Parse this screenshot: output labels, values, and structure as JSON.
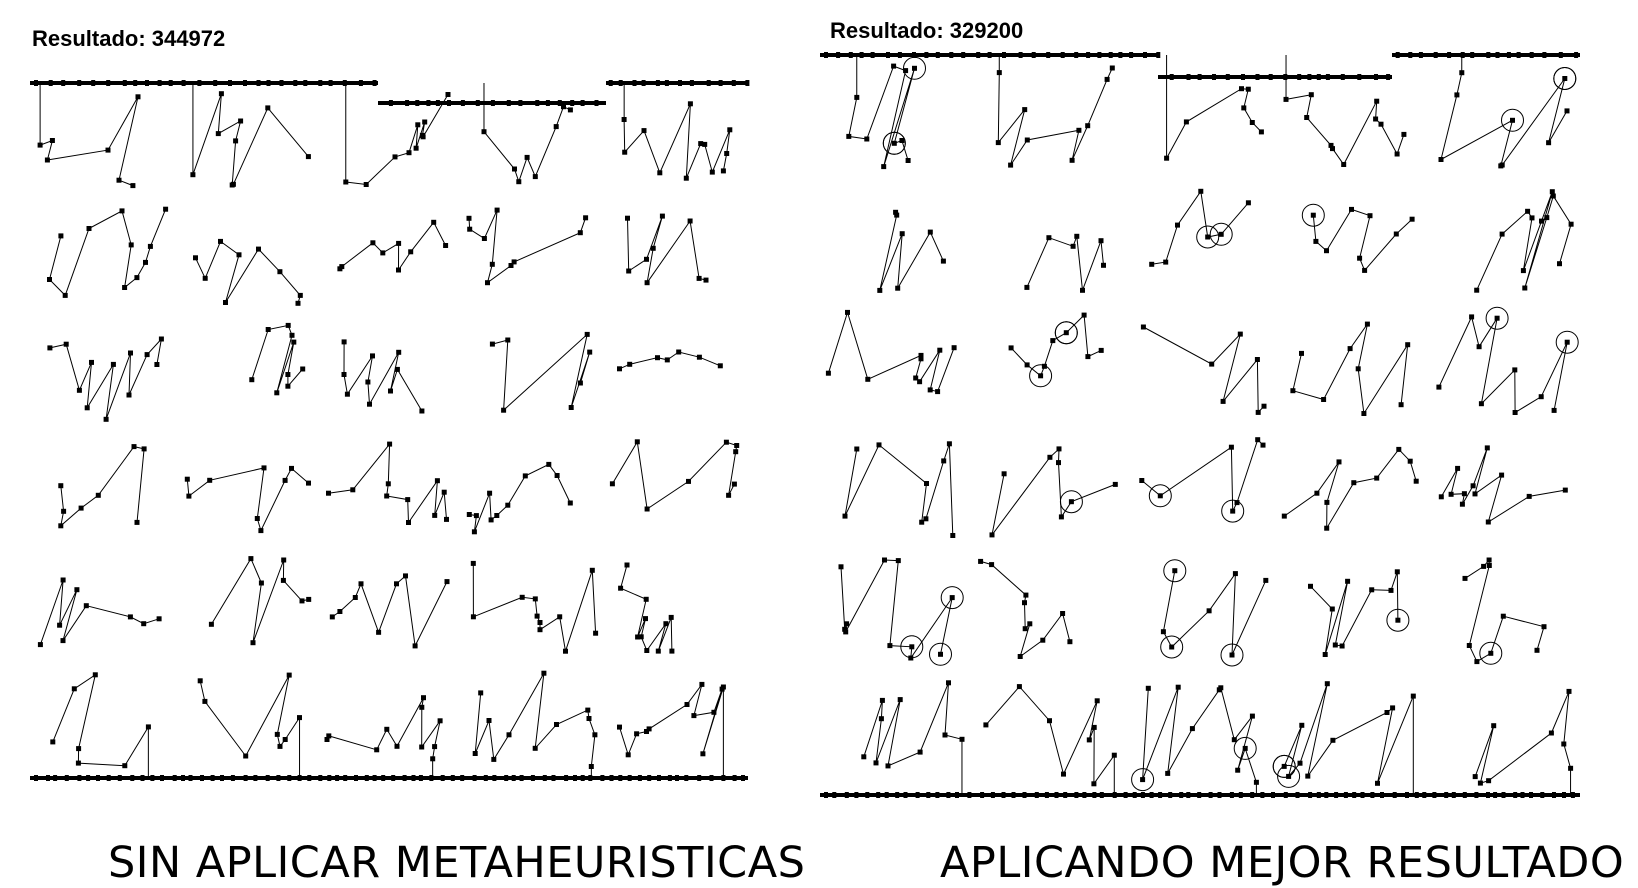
{
  "left": {
    "result_label": "Resultado: 344972",
    "caption": "SIN APLICAR METAHEURISTICAS"
  },
  "right": {
    "result_label": "Resultado: 329200",
    "caption": "APLICANDO MEJOR RESULTADO"
  },
  "colors": {
    "line": "#000000",
    "background": "#ffffff"
  }
}
